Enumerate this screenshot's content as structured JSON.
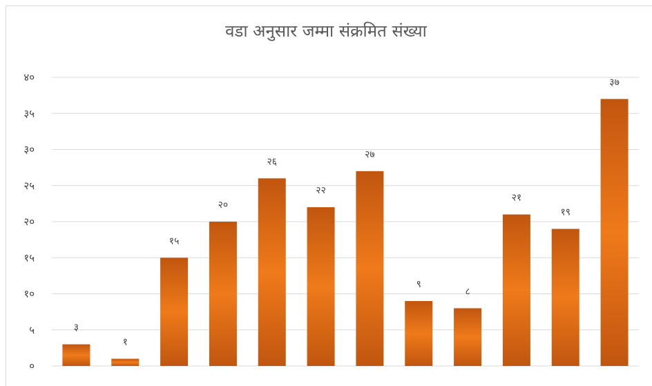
{
  "chart_data": {
    "type": "bar",
    "title": "वडा अनुसार जम्मा संक्रमित संख्या",
    "categories": [
      "",
      "",
      "",
      "",
      "",
      "",
      "",
      "",
      "",
      "",
      "",
      ""
    ],
    "values": [
      3,
      1,
      15,
      20,
      26,
      22,
      27,
      9,
      8,
      21,
      19,
      37
    ],
    "data_labels": [
      "३",
      "१",
      "१५",
      "२०",
      "२६",
      "२२",
      "२७",
      "९",
      "८",
      "२१",
      "१९",
      "३७"
    ],
    "ylim": [
      0,
      40
    ],
    "yticks": [
      0,
      5,
      10,
      15,
      20,
      25,
      30,
      35,
      40
    ],
    "ytick_labels": [
      "०",
      "५",
      "१०",
      "१५",
      "२०",
      "२५",
      "३०",
      "३५",
      "४०"
    ],
    "xlabel": "",
    "ylabel": "",
    "grid": true,
    "legend": "none",
    "bar_color_edge": "#c0560f",
    "bar_color_center": "#f07a1a"
  }
}
